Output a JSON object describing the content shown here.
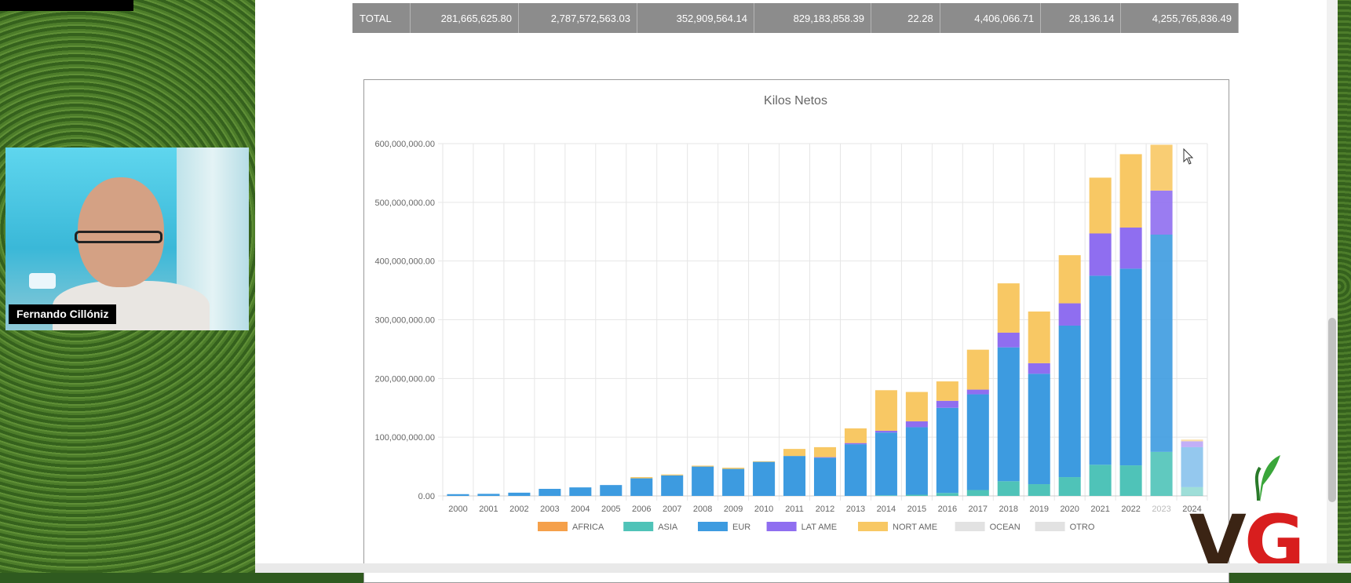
{
  "presenter": {
    "name": "Fernando Cillóniz"
  },
  "totals_row": {
    "label": "TOTAL",
    "values": [
      "281,665,625.80",
      "2,787,572,563.03",
      "352,909,564.14",
      "829,183,858.39",
      "22.28",
      "4,406,066.71",
      "28,136.14",
      "4,255,765,836.49"
    ]
  },
  "logo": {
    "text": "VG"
  },
  "chart_data": {
    "type": "bar",
    "stacked": true,
    "title": "Kilos Netos",
    "categories": [
      "2000",
      "2001",
      "2002",
      "2003",
      "2004",
      "2005",
      "2006",
      "2007",
      "2008",
      "2009",
      "2010",
      "2011",
      "2012",
      "2013",
      "2014",
      "2015",
      "2016",
      "2017",
      "2018",
      "2019",
      "2020",
      "2021",
      "2022",
      "2023",
      "2024"
    ],
    "ylim": [
      0,
      600000000
    ],
    "yticks": [
      "0.00",
      "100,000,000.00",
      "200,000,000.00",
      "300,000,000.00",
      "400,000,000.00",
      "500,000,000.00",
      "600,000,000.00"
    ],
    "grid": true,
    "legend_position": "bottom",
    "series": [
      {
        "name": "AFRICA",
        "color": "#f5a04a",
        "values": [
          0,
          0,
          0,
          0,
          0,
          0,
          0,
          0,
          0,
          0,
          0,
          0,
          0,
          0,
          0,
          0,
          0,
          0,
          0,
          0,
          0,
          0,
          0,
          0,
          0
        ]
      },
      {
        "name": "ASIA",
        "color": "#4fc3b8",
        "values": [
          0,
          0,
          0,
          0,
          0,
          0,
          0,
          0,
          0,
          0,
          0,
          0,
          0,
          0,
          1000000,
          2000000,
          5000000,
          10000000,
          25000000,
          20000000,
          32000000,
          53000000,
          52000000,
          75000000,
          15000000
        ]
      },
      {
        "name": "EUR",
        "color": "#3d9be0",
        "values": [
          3000000,
          3500000,
          5500000,
          12000000,
          14500000,
          18500000,
          30000000,
          35000000,
          50000000,
          46000000,
          58000000,
          68000000,
          65000000,
          88000000,
          107000000,
          115000000,
          145000000,
          163000000,
          228000000,
          188000000,
          258000000,
          322000000,
          335000000,
          370000000,
          68000000
        ]
      },
      {
        "name": "LAT AME",
        "color": "#8f6ef0",
        "values": [
          0,
          0,
          0,
          0,
          0,
          0,
          0,
          0,
          0,
          0,
          0,
          0,
          1000000,
          2000000,
          3000000,
          10000000,
          12000000,
          8000000,
          25000000,
          18000000,
          38000000,
          72000000,
          70000000,
          75000000,
          10000000
        ]
      },
      {
        "name": "NORT AME",
        "color": "#f8c864",
        "values": [
          0,
          0,
          0,
          0,
          0,
          0,
          2000000,
          1500000,
          1500000,
          2000000,
          1000000,
          12000000,
          17000000,
          25000000,
          69000000,
          50000000,
          33000000,
          68000000,
          84000000,
          88000000,
          82000000,
          95000000,
          125000000,
          78000000,
          3000000
        ]
      },
      {
        "name": "OCEAN",
        "color": "#e2e2e2",
        "values": [
          0,
          0,
          0,
          0,
          0,
          0,
          0,
          0,
          0,
          0,
          0,
          0,
          0,
          0,
          0,
          0,
          0,
          0,
          0,
          0,
          0,
          0,
          0,
          0,
          0
        ]
      },
      {
        "name": "OTRO",
        "color": "#e2e2e2",
        "values": [
          0,
          0,
          0,
          0,
          0,
          0,
          0,
          0,
          0,
          0,
          0,
          0,
          0,
          0,
          0,
          0,
          0,
          0,
          0,
          0,
          0,
          0,
          0,
          0,
          0
        ]
      }
    ]
  }
}
